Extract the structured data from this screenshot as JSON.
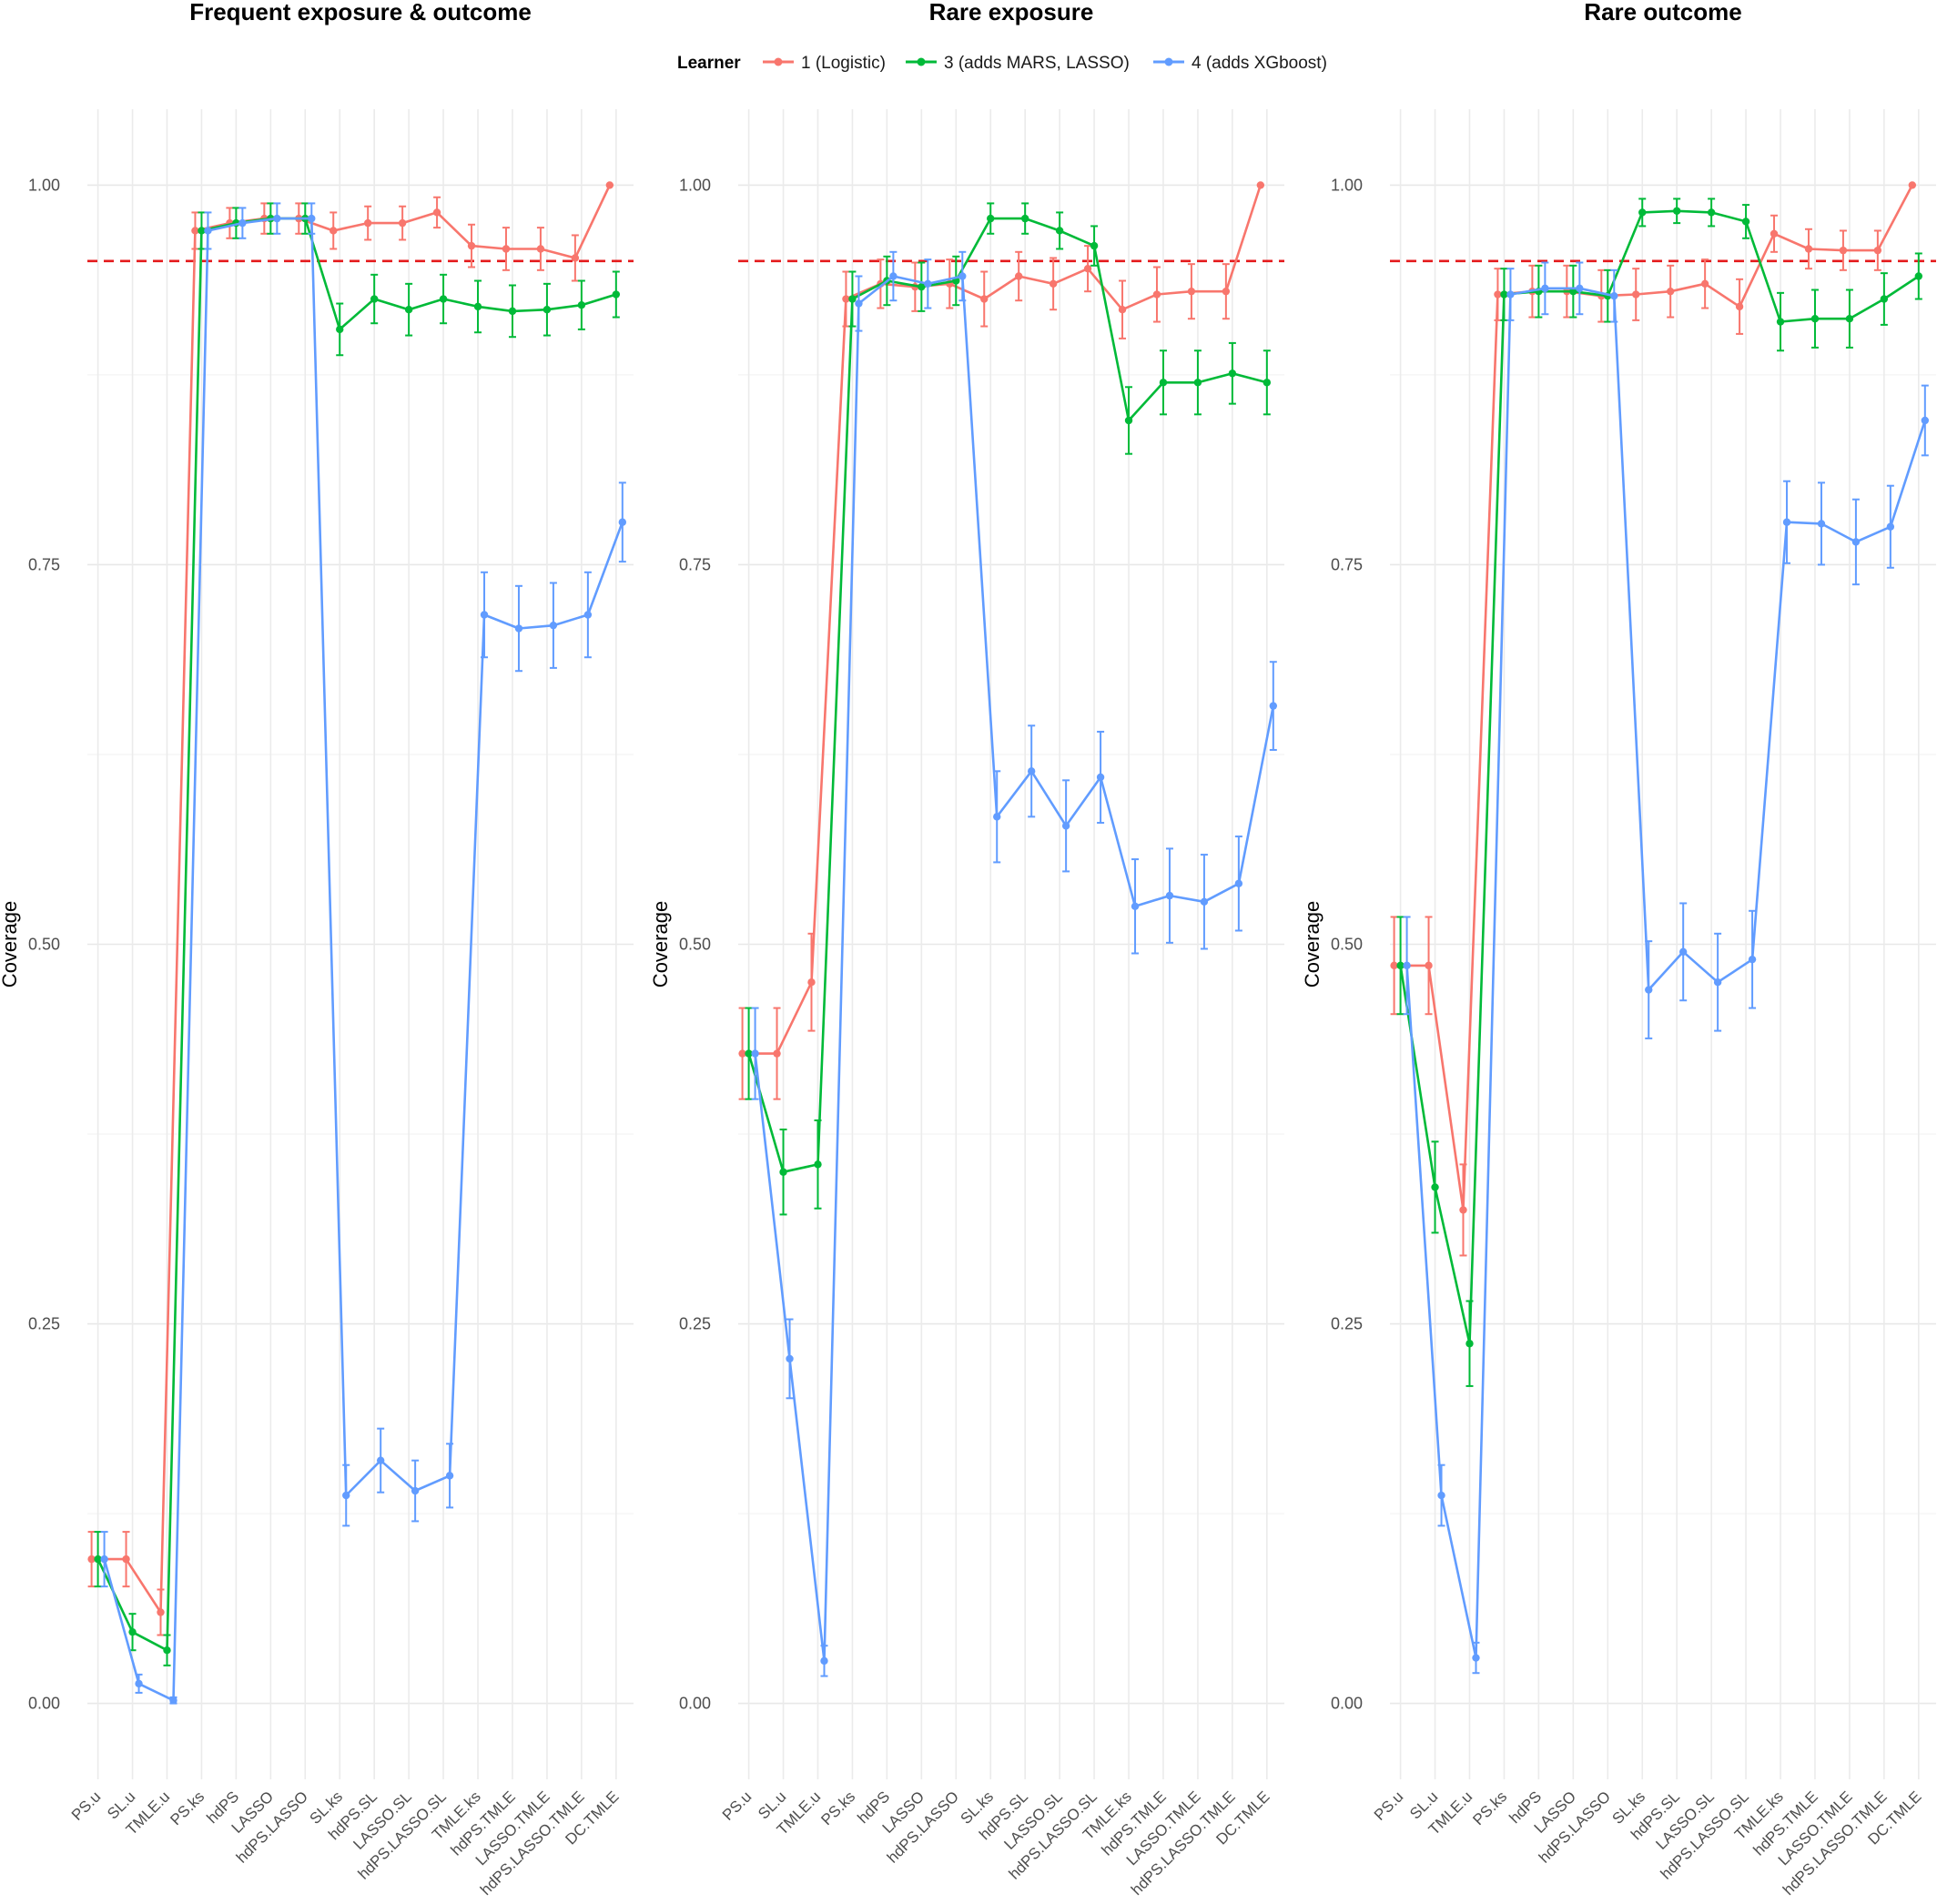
{
  "chart_data": {
    "type": "line",
    "legend_title": "Learner",
    "legend_position": "top",
    "reference_line": {
      "y": 0.95,
      "color": "#e41a1c",
      "style": "dashed"
    },
    "ylabel": "Coverage",
    "ylim": [
      -0.05,
      1.05
    ],
    "yticks": [
      0.0,
      0.25,
      0.5,
      0.75,
      1.0
    ],
    "ytick_labels": [
      "0.00",
      "0.25",
      "0.50",
      "0.75",
      "1.00"
    ],
    "grid": true,
    "categories": [
      "PS.u",
      "SL.u",
      "TMLE.u",
      "PS.ks",
      "hdPS",
      "LASSO",
      "hdPS.LASSO",
      "SL.ks",
      "hdPS.SL",
      "LASSO.SL",
      "hdPS.LASSO.SL",
      "TMLE.ks",
      "hdPS.TMLE",
      "LASSO.TMLE",
      "hdPS.LASSO.TMLE",
      "DC.TMLE"
    ],
    "series_styles": [
      {
        "name": "1 (Logistic)",
        "color": "#f8766d"
      },
      {
        "name": "3 (adds MARS, LASSO)",
        "color": "#00ba38"
      },
      {
        "name": "4 (adds XGboost)",
        "color": "#619cff"
      }
    ],
    "panels": [
      {
        "title": "Frequent exposure & outcome",
        "series": [
          {
            "name": "1 (Logistic)",
            "values": [
              0.095,
              0.095,
              0.06,
              0.97,
              0.975,
              0.978,
              0.978,
              0.97,
              0.975,
              0.975,
              0.982,
              0.96,
              0.958,
              0.958,
              0.952,
              1.0
            ],
            "err": [
              0.018,
              0.018,
              0.015,
              0.012,
              0.01,
              0.01,
              0.01,
              0.012,
              0.011,
              0.011,
              0.01,
              0.014,
              0.014,
              0.014,
              0.015,
              0.0
            ]
          },
          {
            "name": "3 (adds MARS, LASSO)",
            "values": [
              0.095,
              null,
              0.035,
              0.97,
              0.975,
              0.978,
              0.978,
              0.905,
              0.925,
              0.918,
              0.925,
              0.92,
              0.917,
              0.918,
              0.921,
              0.928
            ],
            "err": [
              0.018,
              0,
              0.01,
              0.012,
              0.01,
              0.01,
              0.01,
              0.017,
              0.016,
              0.017,
              0.016,
              0.017,
              0.017,
              0.017,
              0.016,
              0.015
            ],
            "extra": [
              [
                1,
                0.047,
                0.012
              ]
            ]
          },
          {
            "name": "4 (adds XGboost)",
            "values": [
              0.095,
              0.013,
              0.002,
              0.97,
              0.975,
              0.978,
              0.978,
              0.137,
              0.16,
              0.14,
              0.15,
              0.717,
              0.708,
              0.71,
              0.717,
              0.778
            ],
            "err": [
              0.018,
              0.006,
              0.002,
              0.012,
              0.01,
              0.01,
              0.01,
              0.02,
              0.021,
              0.02,
              0.021,
              0.028,
              0.028,
              0.028,
              0.028,
              0.026
            ]
          }
        ]
      },
      {
        "title": "Rare exposure",
        "series": [
          {
            "name": "1 (Logistic)",
            "values": [
              0.428,
              0.428,
              0.475,
              0.925,
              0.935,
              0.933,
              0.935,
              0.925,
              0.94,
              0.935,
              0.945,
              0.918,
              0.928,
              0.93,
              0.93,
              1.0
            ],
            "err": [
              0.03,
              0.03,
              0.032,
              0.018,
              0.016,
              0.016,
              0.016,
              0.018,
              0.016,
              0.017,
              0.015,
              0.019,
              0.018,
              0.018,
              0.018,
              0.0
            ]
          },
          {
            "name": "3 (adds MARS, LASSO)",
            "values": [
              0.428,
              0.35,
              0.355,
              0.925,
              0.937,
              0.933,
              0.937,
              0.978,
              0.978,
              0.97,
              0.96,
              0.845,
              0.87,
              0.87,
              0.876,
              0.87
            ],
            "err": [
              0.03,
              0.028,
              0.029,
              0.018,
              0.016,
              0.016,
              0.016,
              0.01,
              0.01,
              0.012,
              0.013,
              0.022,
              0.021,
              0.021,
              0.02,
              0.021
            ]
          },
          {
            "name": "4 (adds XGboost)",
            "values": [
              0.428,
              0.227,
              0.028,
              0.922,
              0.94,
              0.935,
              0.94,
              0.584,
              0.614,
              0.578,
              0.61,
              0.525,
              0.532,
              0.528,
              0.54,
              0.657
            ],
            "err": [
              0.03,
              0.026,
              0.01,
              0.018,
              0.016,
              0.016,
              0.016,
              0.03,
              0.03,
              0.03,
              0.03,
              0.031,
              0.031,
              0.031,
              0.031,
              0.029
            ]
          }
        ]
      },
      {
        "title": "Rare outcome",
        "series": [
          {
            "name": "1 (Logistic)",
            "values": [
              0.486,
              0.486,
              0.325,
              0.928,
              0.93,
              0.93,
              0.927,
              0.928,
              0.93,
              0.935,
              0.92,
              0.968,
              0.958,
              0.957,
              0.957,
              1.0
            ],
            "err": [
              0.032,
              0.032,
              0.03,
              0.017,
              0.017,
              0.017,
              0.017,
              0.017,
              0.017,
              0.016,
              0.018,
              0.012,
              0.013,
              0.013,
              0.013,
              0.0
            ]
          },
          {
            "name": "3 (adds MARS, LASSO)",
            "values": [
              0.486,
              0.34,
              0.237,
              0.928,
              0.93,
              0.93,
              0.927,
              0.982,
              0.983,
              0.982,
              0.976,
              0.91,
              0.912,
              0.912,
              0.925,
              0.94
            ],
            "err": [
              0.032,
              0.03,
              0.028,
              0.017,
              0.017,
              0.017,
              0.017,
              0.009,
              0.008,
              0.009,
              0.011,
              0.019,
              0.019,
              0.019,
              0.017,
              0.015
            ]
          },
          {
            "name": "4 (adds XGboost)",
            "values": [
              0.486,
              0.137,
              0.03,
              0.928,
              0.932,
              0.932,
              0.927,
              0.47,
              0.495,
              0.475,
              0.49,
              0.778,
              0.777,
              0.765,
              0.775,
              0.845
            ],
            "err": [
              0.032,
              0.02,
              0.01,
              0.017,
              0.017,
              0.017,
              0.017,
              0.032,
              0.032,
              0.032,
              0.032,
              0.027,
              0.027,
              0.028,
              0.027,
              0.023
            ]
          }
        ]
      }
    ]
  }
}
